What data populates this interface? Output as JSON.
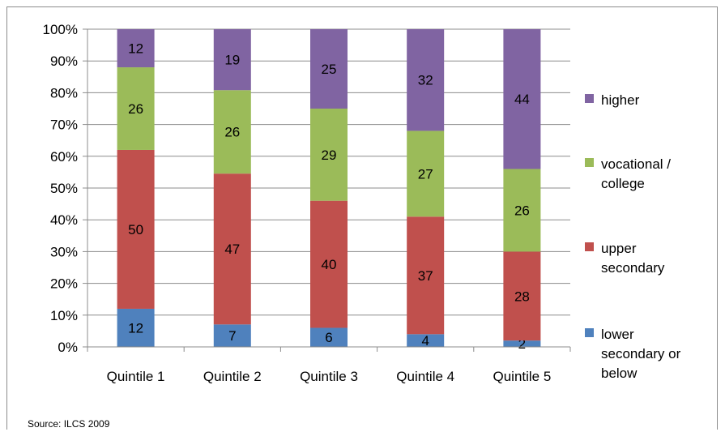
{
  "chart_data": {
    "type": "bar",
    "stacked": true,
    "percent_stacked": true,
    "categories": [
      "Quintile 1",
      "Quintile 2",
      "Quintile 3",
      "Quintile 4",
      "Quintile 5"
    ],
    "series": [
      {
        "name": "lower secondary or below",
        "legend_lines": [
          "lower",
          "secondary or",
          "below"
        ],
        "color": "#4F81BD",
        "values": [
          12,
          7,
          6,
          4,
          2
        ]
      },
      {
        "name": "upper secondary",
        "legend_lines": [
          "upper",
          "secondary"
        ],
        "color": "#C0504D",
        "values": [
          50,
          47,
          40,
          37,
          28
        ]
      },
      {
        "name": "vocational / college",
        "legend_lines": [
          "vocational /",
          "college"
        ],
        "color": "#9BBB59",
        "values": [
          26,
          26,
          29,
          27,
          26
        ]
      },
      {
        "name": "higher",
        "legend_lines": [
          "higher"
        ],
        "color": "#8064A2",
        "values": [
          12,
          19,
          25,
          32,
          44
        ]
      }
    ],
    "ylim": [
      0,
      100
    ],
    "y_ticks": [
      "0%",
      "10%",
      "20%",
      "30%",
      "40%",
      "50%",
      "60%",
      "70%",
      "80%",
      "90%",
      "100%"
    ],
    "grid": true,
    "legend_position": "right",
    "source": "Source: ILCS 2009"
  }
}
